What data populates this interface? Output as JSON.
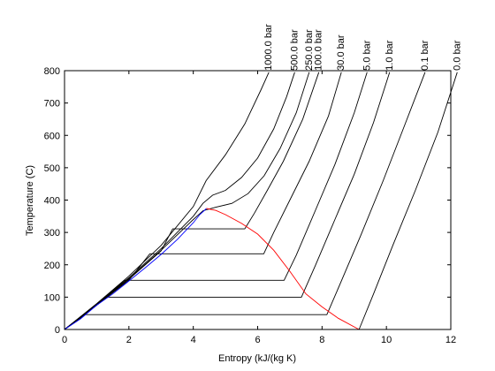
{
  "chart_data": {
    "type": "line",
    "xlabel": "Entropy (kJ/(kg K)",
    "ylabel": "Temperature (C)",
    "xlim": [
      0,
      12
    ],
    "ylim": [
      0,
      800
    ],
    "x_ticks": [
      "0",
      "2",
      "4",
      "6",
      "8",
      "10",
      "12"
    ],
    "y_ticks": [
      "0",
      "100",
      "200",
      "300",
      "400",
      "500",
      "600",
      "700",
      "800"
    ],
    "grid": false,
    "saturation_dome": {
      "liquid": [
        [
          0.0,
          0
        ],
        [
          0.5,
          33
        ],
        [
          1.0,
          75
        ],
        [
          1.5,
          110
        ],
        [
          2.0,
          150
        ],
        [
          2.5,
          190
        ],
        [
          3.0,
          232
        ],
        [
          3.5,
          278
        ],
        [
          4.0,
          330
        ],
        [
          4.2,
          355
        ],
        [
          4.41,
          374
        ]
      ],
      "vapor": [
        [
          4.41,
          374
        ],
        [
          4.7,
          368
        ],
        [
          5.0,
          355
        ],
        [
          5.5,
          328
        ],
        [
          6.0,
          295
        ],
        [
          6.5,
          245
        ],
        [
          7.0,
          180
        ],
        [
          7.5,
          110
        ],
        [
          8.0,
          70
        ],
        [
          8.5,
          35
        ],
        [
          9.15,
          0
        ]
      ]
    },
    "series": [
      {
        "name": "1000.0 bar",
        "label": "1000.0 bar",
        "points": [
          [
            0.0,
            0
          ],
          [
            1.0,
            80
          ],
          [
            2.0,
            165
          ],
          [
            3.0,
            260
          ],
          [
            4.0,
            380
          ],
          [
            4.4,
            460
          ],
          [
            5.0,
            540
          ],
          [
            5.6,
            635
          ],
          [
            6.1,
            740
          ],
          [
            6.35,
            795
          ]
        ]
      },
      {
        "name": "500.0 bar",
        "label": "500.0 bar",
        "points": [
          [
            0.0,
            0
          ],
          [
            1.0,
            78
          ],
          [
            2.0,
            160
          ],
          [
            3.0,
            250
          ],
          [
            4.0,
            350
          ],
          [
            4.3,
            390
          ],
          [
            4.6,
            415
          ],
          [
            5.0,
            430
          ],
          [
            5.5,
            470
          ],
          [
            6.0,
            530
          ],
          [
            6.5,
            620
          ],
          [
            6.9,
            720
          ],
          [
            7.15,
            795
          ]
        ]
      },
      {
        "name": "250.0 bar",
        "label": "250.0 bar",
        "points": [
          [
            0.0,
            0
          ],
          [
            1.0,
            77
          ],
          [
            2.0,
            157
          ],
          [
            3.0,
            245
          ],
          [
            4.0,
            340
          ],
          [
            4.3,
            367
          ],
          [
            4.7,
            378
          ],
          [
            5.2,
            390
          ],
          [
            5.7,
            420
          ],
          [
            6.2,
            475
          ],
          [
            6.7,
            560
          ],
          [
            7.2,
            670
          ],
          [
            7.6,
            795
          ]
        ]
      },
      {
        "name": "100.0 bar",
        "label": "100.0 bar",
        "points": [
          [
            0.0,
            0
          ],
          [
            1.0,
            76
          ],
          [
            2.0,
            155
          ],
          [
            3.0,
            243
          ],
          [
            3.36,
            311
          ],
          [
            5.6,
            311
          ],
          [
            5.9,
            360
          ],
          [
            6.3,
            430
          ],
          [
            6.8,
            520
          ],
          [
            7.4,
            650
          ],
          [
            7.9,
            795
          ]
        ]
      },
      {
        "name": "30.0 bar",
        "label": "30.0 bar",
        "points": [
          [
            0.0,
            0
          ],
          [
            1.0,
            75
          ],
          [
            2.0,
            152
          ],
          [
            2.65,
            234
          ],
          [
            6.19,
            234
          ],
          [
            6.5,
            300
          ],
          [
            7.0,
            400
          ],
          [
            7.6,
            520
          ],
          [
            8.2,
            660
          ],
          [
            8.6,
            795
          ]
        ]
      },
      {
        "name": "5.0 bar",
        "label": "5.0 bar",
        "points": [
          [
            0.0,
            0
          ],
          [
            1.0,
            75
          ],
          [
            1.86,
            152
          ],
          [
            6.82,
            152
          ],
          [
            7.2,
            230
          ],
          [
            7.8,
            370
          ],
          [
            8.4,
            510
          ],
          [
            9.0,
            670
          ],
          [
            9.4,
            795
          ]
        ]
      },
      {
        "name": "1.0 bar",
        "label": "1.0 bar",
        "points": [
          [
            0.0,
            0
          ],
          [
            1.0,
            75
          ],
          [
            1.3,
            100
          ],
          [
            7.36,
            100
          ],
          [
            7.8,
            200
          ],
          [
            8.4,
            340
          ],
          [
            9.0,
            480
          ],
          [
            9.6,
            640
          ],
          [
            10.1,
            795
          ]
        ]
      },
      {
        "name": "0.1 bar",
        "label": "0.1 bar",
        "points": [
          [
            0.0,
            0
          ],
          [
            0.65,
            46
          ],
          [
            8.15,
            46
          ],
          [
            8.6,
            150
          ],
          [
            9.2,
            290
          ],
          [
            9.9,
            460
          ],
          [
            10.6,
            640
          ],
          [
            11.2,
            795
          ]
        ]
      },
      {
        "name": "0.0 bar",
        "label": "0.0 bar",
        "points": [
          [
            9.15,
            0
          ],
          [
            9.6,
            110
          ],
          [
            10.2,
            260
          ],
          [
            10.9,
            430
          ],
          [
            11.6,
            610
          ],
          [
            12.2,
            795
          ]
        ]
      }
    ],
    "colors": {
      "axes": "#000000",
      "isobar": "#000000",
      "liquid_line": "#0000ff",
      "vapor_line": "#ff0000"
    }
  }
}
